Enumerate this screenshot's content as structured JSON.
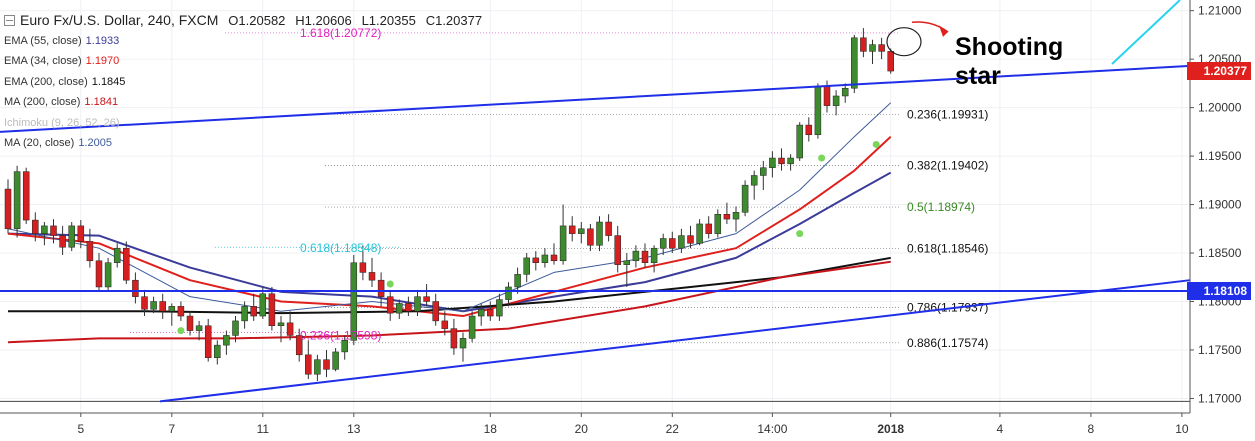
{
  "title": {
    "symbol": "Euro Fx/U.S. Dollar, 240, FXCM",
    "open": "O1.20582",
    "high": "H1.20606",
    "low": "L1.20355",
    "close": "C1.20377"
  },
  "indicators": [
    {
      "label": "EMA (55, close)",
      "value": "1.1933",
      "color": "#3b3b9a"
    },
    {
      "label": "EMA (34, close)",
      "value": "1.1970",
      "color": "#e0201c"
    },
    {
      "label": "EMA (200, close)",
      "value": "1.1845",
      "color": "#111111"
    },
    {
      "label": "MA (200, close)",
      "value": "1.1841",
      "color": "#c8151b"
    },
    {
      "label": "Ichimoku (9, 26, 52, 26)",
      "value": "",
      "color": "#bbbbbb"
    },
    {
      "label": "MA (20, close)",
      "value": "1.2005",
      "color": "#3c5a9a"
    }
  ],
  "annotation": {
    "text_line1": "Shooting",
    "text_line2": "star"
  },
  "price_tags": [
    {
      "value": "1.20377",
      "price": 1.20377,
      "color": "#e0201c"
    },
    {
      "value": "1.18108",
      "price": 1.18108,
      "color": "#1f2ee8"
    }
  ],
  "chart_data": {
    "type": "candlestick",
    "title": "Euro Fx/U.S. Dollar, 240, FXCM",
    "xlabel": "",
    "ylabel": "",
    "ylim": [
      1.1685,
      1.2111
    ],
    "y_ticks": [
      "1.21000",
      "1.20500",
      "1.20000",
      "1.19500",
      "1.19000",
      "1.18500",
      "1.18000",
      "1.17500",
      "1.17000"
    ],
    "x_tick_labels": [
      {
        "label": "5",
        "i": 8
      },
      {
        "label": "7",
        "i": 18
      },
      {
        "label": "11",
        "i": 28
      },
      {
        "label": "13",
        "i": 38
      },
      {
        "label": "18",
        "i": 53
      },
      {
        "label": "20",
        "i": 63
      },
      {
        "label": "22",
        "i": 73
      },
      {
        "label": "14:00",
        "i": 84
      },
      {
        "label": "2018",
        "i": 97
      },
      {
        "label": "4",
        "i": 109
      },
      {
        "label": "8",
        "i": 119
      },
      {
        "label": "10",
        "i": 129
      }
    ],
    "candles": [
      [
        1.1916,
        1.1926,
        1.187,
        1.1875
      ],
      [
        1.1875,
        1.194,
        1.1866,
        1.1934
      ],
      [
        1.1934,
        1.1938,
        1.188,
        1.1884
      ],
      [
        1.1884,
        1.1892,
        1.1862,
        1.187
      ],
      [
        1.187,
        1.1882,
        1.1858,
        1.1878
      ],
      [
        1.1878,
        1.1885,
        1.186,
        1.1868
      ],
      [
        1.1868,
        1.1878,
        1.1848,
        1.1856
      ],
      [
        1.1856,
        1.1882,
        1.1852,
        1.1878
      ],
      [
        1.1878,
        1.1884,
        1.1855,
        1.1862
      ],
      [
        1.1862,
        1.1875,
        1.1835,
        1.1842
      ],
      [
        1.1842,
        1.185,
        1.181,
        1.1815
      ],
      [
        1.1815,
        1.1845,
        1.181,
        1.184
      ],
      [
        1.184,
        1.186,
        1.1835,
        1.1855
      ],
      [
        1.1855,
        1.1862,
        1.1818,
        1.1822
      ],
      [
        1.1822,
        1.183,
        1.1798,
        1.1805
      ],
      [
        1.1805,
        1.1812,
        1.1785,
        1.1792
      ],
      [
        1.1792,
        1.1805,
        1.1788,
        1.18
      ],
      [
        1.18,
        1.1808,
        1.1782,
        1.179
      ],
      [
        1.179,
        1.1798,
        1.1775,
        1.1795
      ],
      [
        1.1795,
        1.18,
        1.178,
        1.1785
      ],
      [
        1.1785,
        1.179,
        1.1765,
        1.177
      ],
      [
        1.177,
        1.178,
        1.176,
        1.1775
      ],
      [
        1.1775,
        1.1782,
        1.1738,
        1.1742
      ],
      [
        1.1742,
        1.176,
        1.1735,
        1.1755
      ],
      [
        1.1755,
        1.177,
        1.1745,
        1.1765
      ],
      [
        1.1765,
        1.1785,
        1.1758,
        1.178
      ],
      [
        1.178,
        1.18,
        1.1772,
        1.1795
      ],
      [
        1.1795,
        1.1808,
        1.178,
        1.1785
      ],
      [
        1.1785,
        1.1815,
        1.1782,
        1.1808
      ],
      [
        1.1808,
        1.1815,
        1.177,
        1.1775
      ],
      [
        1.1775,
        1.1785,
        1.1758,
        1.1778
      ],
      [
        1.1778,
        1.179,
        1.176,
        1.1765
      ],
      [
        1.1765,
        1.1772,
        1.1738,
        1.1745
      ],
      [
        1.1745,
        1.176,
        1.172,
        1.1725
      ],
      [
        1.1725,
        1.1745,
        1.1718,
        1.174
      ],
      [
        1.174,
        1.175,
        1.1722,
        1.173
      ],
      [
        1.173,
        1.1752,
        1.1728,
        1.1748
      ],
      [
        1.1748,
        1.1765,
        1.174,
        1.176
      ],
      [
        1.176,
        1.1848,
        1.1755,
        1.184
      ],
      [
        1.184,
        1.1858,
        1.1822,
        1.183
      ],
      [
        1.183,
        1.1845,
        1.1815,
        1.1822
      ],
      [
        1.1822,
        1.183,
        1.1795,
        1.1805
      ],
      [
        1.1805,
        1.1812,
        1.178,
        1.1788
      ],
      [
        1.1788,
        1.1802,
        1.1782,
        1.1798
      ],
      [
        1.1798,
        1.1805,
        1.1785,
        1.179
      ],
      [
        1.179,
        1.1812,
        1.1785,
        1.1805
      ],
      [
        1.1805,
        1.1818,
        1.1795,
        1.18
      ],
      [
        1.18,
        1.1808,
        1.1775,
        1.178
      ],
      [
        1.178,
        1.179,
        1.1765,
        1.1772
      ],
      [
        1.1772,
        1.1782,
        1.1745,
        1.1752
      ],
      [
        1.1752,
        1.1768,
        1.1738,
        1.1762
      ],
      [
        1.1762,
        1.179,
        1.1758,
        1.1785
      ],
      [
        1.1785,
        1.1798,
        1.1775,
        1.1792
      ],
      [
        1.1792,
        1.18,
        1.178,
        1.1785
      ],
      [
        1.1785,
        1.1808,
        1.178,
        1.1802
      ],
      [
        1.1802,
        1.182,
        1.1795,
        1.1815
      ],
      [
        1.1815,
        1.1835,
        1.1808,
        1.1828
      ],
      [
        1.1828,
        1.185,
        1.182,
        1.1845
      ],
      [
        1.1845,
        1.1852,
        1.1832,
        1.184
      ],
      [
        1.184,
        1.1855,
        1.1835,
        1.1848
      ],
      [
        1.1848,
        1.186,
        1.1838,
        1.1842
      ],
      [
        1.1842,
        1.19,
        1.1838,
        1.1878
      ],
      [
        1.1878,
        1.1888,
        1.1862,
        1.187
      ],
      [
        1.187,
        1.1882,
        1.186,
        1.1875
      ],
      [
        1.1875,
        1.188,
        1.1852,
        1.1858
      ],
      [
        1.1858,
        1.1888,
        1.1852,
        1.1882
      ],
      [
        1.1882,
        1.189,
        1.1862,
        1.1868
      ],
      [
        1.1868,
        1.1878,
        1.183,
        1.1838
      ],
      [
        1.1838,
        1.185,
        1.1815,
        1.1842
      ],
      [
        1.1842,
        1.1858,
        1.1835,
        1.1852
      ],
      [
        1.1852,
        1.186,
        1.1835,
        1.184
      ],
      [
        1.184,
        1.1858,
        1.183,
        1.1855
      ],
      [
        1.1855,
        1.187,
        1.1848,
        1.1865
      ],
      [
        1.1865,
        1.1872,
        1.185,
        1.1855
      ],
      [
        1.1855,
        1.1875,
        1.185,
        1.1868
      ],
      [
        1.1868,
        1.1878,
        1.1855,
        1.186
      ],
      [
        1.186,
        1.1885,
        1.1858,
        1.188
      ],
      [
        1.188,
        1.1888,
        1.1865,
        1.187
      ],
      [
        1.187,
        1.1895,
        1.1866,
        1.189
      ],
      [
        1.189,
        1.1902,
        1.188,
        1.1885
      ],
      [
        1.1885,
        1.1898,
        1.1872,
        1.1892
      ],
      [
        1.1892,
        1.1925,
        1.1888,
        1.192
      ],
      [
        1.192,
        1.1935,
        1.1905,
        1.193
      ],
      [
        1.193,
        1.1945,
        1.1915,
        1.1938
      ],
      [
        1.1938,
        1.1955,
        1.1928,
        1.1948
      ],
      [
        1.1948,
        1.1958,
        1.1935,
        1.1942
      ],
      [
        1.1942,
        1.1952,
        1.1935,
        1.1948
      ],
      [
        1.1948,
        1.1985,
        1.1945,
        1.1982
      ],
      [
        1.1982,
        1.199,
        1.1965,
        1.1972
      ],
      [
        1.1972,
        1.2025,
        1.1968,
        1.2022
      ],
      [
        1.2022,
        1.2028,
        1.1995,
        1.2002
      ],
      [
        1.2002,
        1.2018,
        1.1992,
        1.2012
      ],
      [
        1.2012,
        1.2025,
        1.2005,
        1.202
      ],
      [
        1.202,
        1.2075,
        1.2015,
        1.2072
      ],
      [
        1.2072,
        1.2082,
        1.2052,
        1.2058
      ],
      [
        1.2058,
        1.207,
        1.2045,
        1.2065
      ],
      [
        1.2065,
        1.2072,
        1.205,
        1.2058
      ],
      [
        1.2058,
        1.2061,
        1.2035,
        1.20377
      ]
    ],
    "series": [
      {
        "name": "EMA (55, close)",
        "color": "#3b3b9a",
        "values": [
          [
            0,
            1.187
          ],
          [
            10,
            1.1868
          ],
          [
            20,
            1.1835
          ],
          [
            30,
            1.181
          ],
          [
            40,
            1.1805
          ],
          [
            50,
            1.179
          ],
          [
            60,
            1.1805
          ],
          [
            70,
            1.182
          ],
          [
            80,
            1.1845
          ],
          [
            87,
            1.188
          ],
          [
            93,
            1.1912
          ],
          [
            97,
            1.1933
          ]
        ]
      },
      {
        "name": "EMA (34, close)",
        "color": "#e0201c",
        "values": [
          [
            0,
            1.187
          ],
          [
            10,
            1.186
          ],
          [
            20,
            1.1822
          ],
          [
            30,
            1.18
          ],
          [
            40,
            1.1795
          ],
          [
            50,
            1.1785
          ],
          [
            60,
            1.181
          ],
          [
            70,
            1.1835
          ],
          [
            80,
            1.1855
          ],
          [
            87,
            1.1895
          ],
          [
            93,
            1.1935
          ],
          [
            97,
            1.197
          ]
        ]
      },
      {
        "name": "EMA (200, close)",
        "color": "#111111",
        "values": [
          [
            0,
            1.179
          ],
          [
            15,
            1.179
          ],
          [
            30,
            1.1788
          ],
          [
            45,
            1.179
          ],
          [
            60,
            1.18
          ],
          [
            75,
            1.1815
          ],
          [
            85,
            1.1825
          ],
          [
            97,
            1.1845
          ]
        ]
      },
      {
        "name": "MA (200, close)",
        "color": "#c8151b",
        "values": [
          [
            0,
            1.1758
          ],
          [
            10,
            1.1762
          ],
          [
            25,
            1.1762
          ],
          [
            40,
            1.1765
          ],
          [
            55,
            1.1772
          ],
          [
            70,
            1.1795
          ],
          [
            85,
            1.1825
          ],
          [
            97,
            1.1841
          ]
        ]
      },
      {
        "name": "MA (20, close)",
        "color": "#3c5a9a",
        "values": [
          [
            0,
            1.1875
          ],
          [
            10,
            1.1855
          ],
          [
            20,
            1.1805
          ],
          [
            30,
            1.179
          ],
          [
            40,
            1.18
          ],
          [
            50,
            1.179
          ],
          [
            60,
            1.183
          ],
          [
            70,
            1.1845
          ],
          [
            80,
            1.187
          ],
          [
            87,
            1.1915
          ],
          [
            93,
            1.197
          ],
          [
            97,
            1.2005
          ]
        ]
      }
    ],
    "fibonacci_levels": [
      {
        "label": "0.236(1.19931)",
        "price": 1.19931,
        "color": "#111111"
      },
      {
        "label": "0.382(1.19402)",
        "price": 1.19402,
        "color": "#111111"
      },
      {
        "label": "0.5(1.18974)",
        "price": 1.18974,
        "color": "#3b8a24"
      },
      {
        "label": "0.618(1.18546)",
        "price": 1.18546,
        "color": "#111111"
      },
      {
        "label": "0.786(1.17937)",
        "price": 1.17937,
        "color": "#111111"
      },
      {
        "label": "0.886(1.17574)",
        "price": 1.17574,
        "color": "#111111"
      }
    ],
    "other_annotations": [
      {
        "label": "1.618(1.20772)",
        "color": "#e020c0"
      },
      {
        "label": "0.618(1.18548)",
        "color": "#26c4d8"
      },
      {
        "label": "0.236(1.17598)",
        "color": "#e020c0"
      }
    ],
    "horizontal_lines": [
      {
        "price": 1.18108,
        "color": "#1f2ee8"
      },
      {
        "price": 1.1697,
        "color": "#444444"
      }
    ]
  }
}
